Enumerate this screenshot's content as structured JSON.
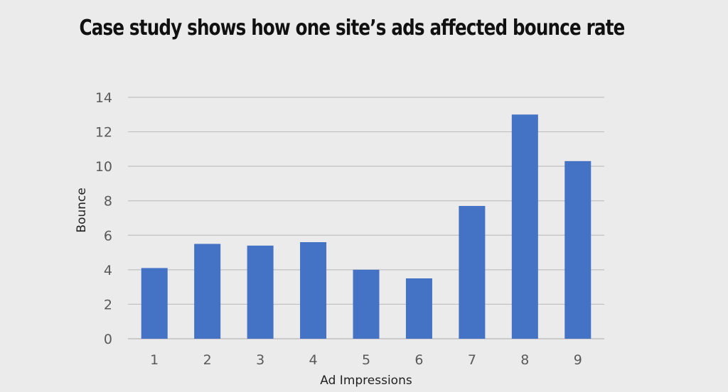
{
  "chart_data": {
    "type": "bar",
    "title": "Case study shows how one site’s ads affected bounce rate",
    "xlabel": "Ad Impressions",
    "ylabel": "Bounce",
    "categories": [
      "1",
      "2",
      "3",
      "4",
      "5",
      "6",
      "7",
      "8",
      "9"
    ],
    "values": [
      4.1,
      5.5,
      5.4,
      5.6,
      4.0,
      3.5,
      7.7,
      13.0,
      10.3
    ],
    "ylim": [
      0,
      14
    ],
    "yticks": [
      0,
      2,
      4,
      6,
      8,
      10,
      12,
      14
    ],
    "grid": true,
    "legend": "none",
    "bar_color": "#4472c4",
    "grid_color": "#c0c0c0"
  }
}
